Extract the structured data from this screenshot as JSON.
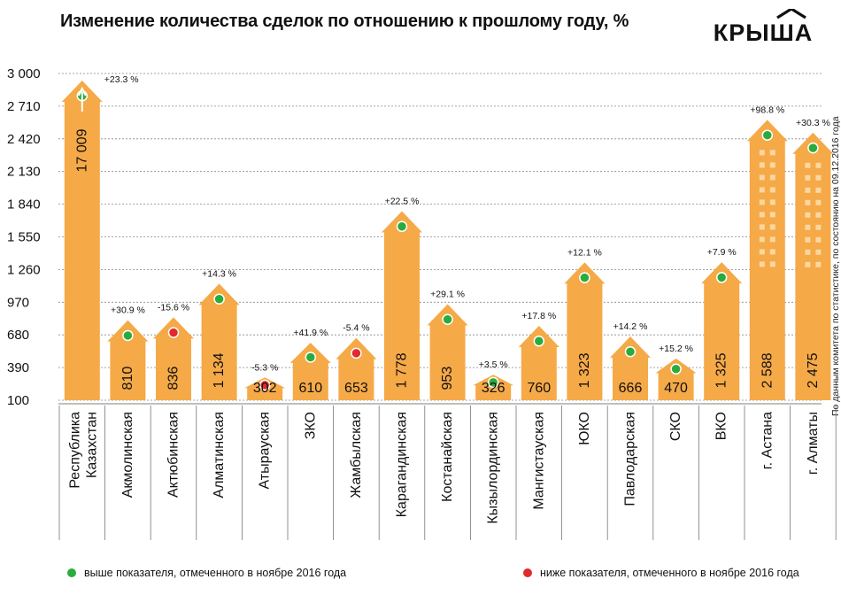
{
  "header": {
    "title": "Изменение количества сделок по отношению к прошлому году, %",
    "logo_text": "КРЫША",
    "source_note": "По данным комитета по статистике, по состоянию на 09.12.2016 года"
  },
  "legend": {
    "above": "выше показателя, отмеченного в ноябре 2016 года",
    "below": "ниже показателя, отмеченного в ноябре 2016 года"
  },
  "colors": {
    "bar": "#f5a947",
    "window": "#fbd7a0",
    "grid": "#888888",
    "above_dot": "#2bab3c",
    "below_dot": "#e22a2a"
  },
  "chart_data": {
    "type": "bar",
    "title": "Изменение количества сделок по отношению к прошлому году, %",
    "ylim": [
      100,
      3000
    ],
    "yticks": [
      "100",
      "390",
      "680",
      "970",
      "1 260",
      "1 550",
      "1 840",
      "2 130",
      "2 420",
      "2 710",
      "3 000"
    ],
    "categories": [
      "Республика Казахстан",
      "Акмолинская",
      "Актюбинская",
      "Алматинская",
      "Атырауская",
      "ЗКО",
      "Жамбылская",
      "Карагандинская",
      "Костанайская",
      "Кызылординская",
      "Мангистауская",
      "ЮКО",
      "Павлодарская",
      "СКО",
      "ВКО",
      "г. Астана",
      "г. Алматы"
    ],
    "values": [
      17009,
      810,
      836,
      1134,
      302,
      610,
      653,
      1778,
      953,
      326,
      760,
      1323,
      666,
      470,
      1325,
      2588,
      2475
    ],
    "value_labels": [
      "17 009",
      "810",
      "836",
      "1 134",
      "302",
      "610",
      "653",
      "1 778",
      "953",
      "326",
      "760",
      "1 323",
      "666",
      "470",
      "1 325",
      "2 588",
      "2 475"
    ],
    "change_labels": [
      "+23.3 %",
      "+30.9 %",
      "-15.6 %",
      "+14.3 %",
      "-5.3 %",
      "+41.9 %",
      "-5.4 %",
      "+22.5 %",
      "+29.1 %",
      "+3.5 %",
      "+17.8 %",
      "+12.1 %",
      "+14.2 %",
      "+15.2 %",
      "+7.9 %",
      "+98.8 %",
      "+30.3 %"
    ],
    "status": [
      "above",
      "above",
      "below",
      "above",
      "below",
      "above",
      "below",
      "above",
      "above",
      "above",
      "above",
      "above",
      "above",
      "above",
      "above",
      "above",
      "above"
    ],
    "first_bar_exceeds_axis": true,
    "grid": true
  }
}
